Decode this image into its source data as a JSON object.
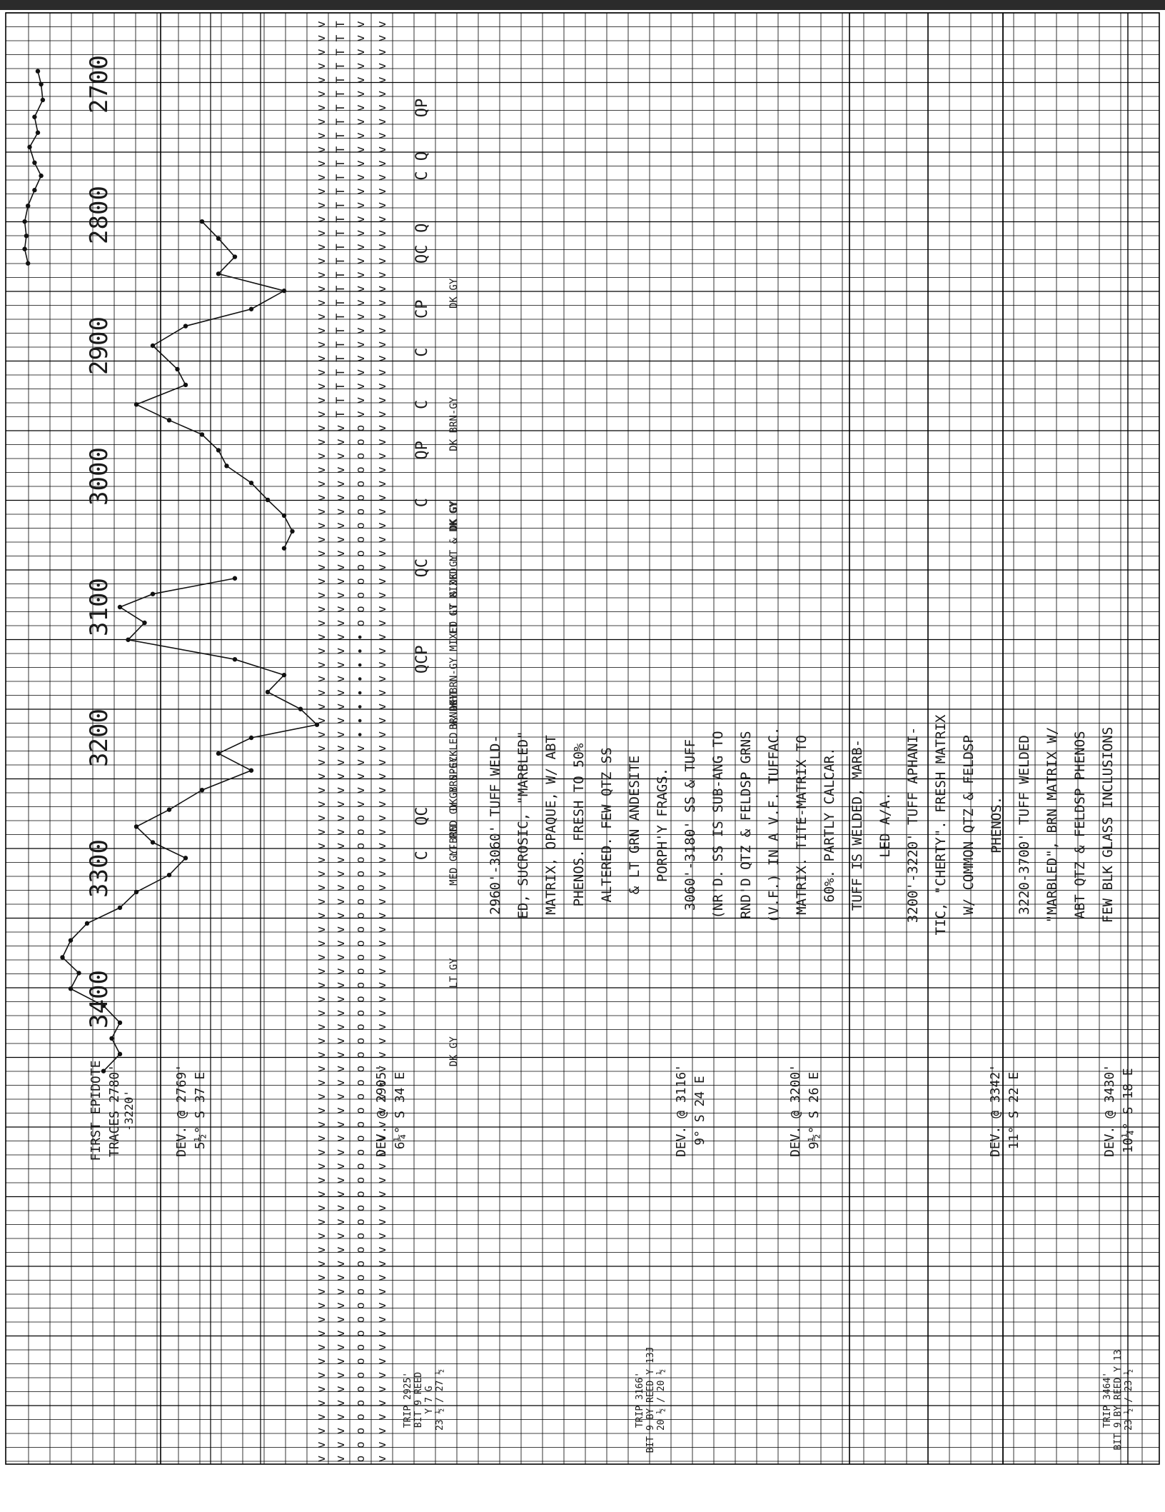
{
  "depth_labels": [
    "2700",
    "2800",
    "2900",
    "3000",
    "3100",
    "3200",
    "3300",
    "3400"
  ],
  "deviation_notes": [
    {
      "depth": "FIRST EPIDOTE",
      "angle": "TRACES 2780'",
      "extra": "-3220'"
    },
    {
      "depth": "DEV. @ 2769'",
      "angle": "5½° S 37 E"
    },
    {
      "depth": "DEV. @ 2905'",
      "angle": "6¼° S 34 E"
    },
    {
      "depth": "DEV. @ 3116'",
      "angle": "9° S 24 E"
    },
    {
      "depth": "DEV. @ 3200'",
      "angle": "9½° S 26 E"
    },
    {
      "depth": "DEV. @ 3342'",
      "angle": "11° S 22 E"
    },
    {
      "depth": "DEV. @ 3430'",
      "angle": "10¼° S 18 E"
    }
  ],
  "lithology_description": [
    "2960'-3060' TUFF WELD-",
    "ED, SUCROSIC, \"MARBLED\"",
    "MATRIX, OPAQUE, W/ ABT",
    "PHENOS. FRESH TO 50%",
    "ALTERED. FEW QTZ SS",
    "& LT GRN ANDESITE",
    "PORPH'Y FRAGS.",
    "3060'-3180' SS & TUFF",
    "(NR'D. SS IS SUB-ANG TO",
    "RND'D QTZ & FELDSP GRNS",
    "(V.F.) IN A V.F. TUFFAC.",
    "MATRIX. TITE-MATRIX TO",
    "60%. PARTLY CALCAR.",
    "TUFF IS WELDED, MARB-",
    "LED A/A.",
    "3200'-3220' TUFF APHANI-",
    "TIC, \"CHERTY\". FRESH MATRIX",
    "W/ COMMON QTZ & FELDSP",
    "PHENOS.",
    "3220-3700' TUFF WELDED",
    "\"MARBLED\", BRN MATRIX W/",
    "ABT QTZ & FELDSP PHENOS",
    "FEW BLK GLASS INCLUSIONS"
  ],
  "color_notes": [
    "DK GY",
    "DK BRN-GY",
    "DK GY",
    "LT GY MIXED LT & DK GY",
    "DK BRN-GY MIXED LT & DK GY",
    "BRN-GY",
    "GY SPECKLED W/ WHT",
    "DK BRN-GY",
    "LT MED GY",
    "MED GY-BRN",
    "LT GY",
    "DK GY"
  ],
  "mineral_codes": [
    "QP",
    "Q",
    "C",
    "Q",
    "QC",
    "CP",
    "C",
    "C",
    "QP",
    "C",
    "QC",
    "QCP",
    "QC",
    "C"
  ],
  "trip_notes": [
    {
      "line1": "TRIP 2925'",
      "line2": "BIT 9 REED",
      "line3": "Y 7 G",
      "line4": "23 ½ / 27 ½"
    },
    {
      "line1": "TRIP 3166'",
      "line2": "BIT 9 BY REED Y 13J",
      "line3": "20 ½ / 20 ½"
    },
    {
      "line1": "TRIP 3464'",
      "line2": "BIT 9 BY REED Y 13",
      "line3": "23 ½ / 23 ½"
    }
  ],
  "chart_data": {
    "type": "line",
    "x_axis": "depth (ft)",
    "xlim": [
      2680,
      3480
    ],
    "series": [
      {
        "name": "",
        "points": [
          [
            2690,
            1.1
          ],
          [
            2700,
            1.12
          ],
          [
            2712,
            1.13
          ],
          [
            2725,
            1.08
          ],
          [
            2737,
            1.1
          ],
          [
            2748,
            1.05
          ],
          [
            2760,
            1.08
          ],
          [
            2770,
            1.12
          ],
          [
            2781,
            1.08
          ],
          [
            2793,
            1.04
          ],
          [
            2805,
            1.02
          ],
          [
            2816,
            1.03
          ],
          [
            2826,
            1.02
          ],
          [
            2837,
            1.04
          ]
        ]
      },
      {
        "name": "",
        "points": [
          [
            2805,
            2.1
          ],
          [
            2818,
            2.2
          ],
          [
            2832,
            2.3
          ],
          [
            2845,
            2.2
          ],
          [
            2858,
            2.6
          ],
          [
            2872,
            2.4
          ],
          [
            2885,
            2.0
          ],
          [
            2900,
            1.8
          ],
          [
            2918,
            1.95
          ],
          [
            2930,
            2.0
          ],
          [
            2945,
            1.7
          ],
          [
            2957,
            1.9
          ],
          [
            2968,
            2.1
          ],
          [
            2980,
            2.2
          ],
          [
            2992,
            2.25
          ],
          [
            3005,
            2.4
          ],
          [
            3018,
            2.5
          ],
          [
            3030,
            2.6
          ],
          [
            3042,
            2.65
          ],
          [
            3055,
            2.6
          ]
        ]
      },
      {
        "name": "",
        "points": [
          [
            3078,
            2.3
          ],
          [
            3090,
            1.8
          ],
          [
            3100,
            1.6
          ],
          [
            3112,
            1.75
          ],
          [
            3125,
            1.65
          ],
          [
            3140,
            2.3
          ],
          [
            3152,
            2.6
          ],
          [
            3165,
            2.5
          ],
          [
            3178,
            2.7
          ],
          [
            3190,
            2.8
          ],
          [
            3200,
            2.4
          ],
          [
            3212,
            2.2
          ],
          [
            3225,
            2.4
          ],
          [
            3240,
            2.1
          ],
          [
            3255,
            1.9
          ],
          [
            3268,
            1.7
          ],
          [
            3280,
            1.8
          ],
          [
            3292,
            2.0
          ],
          [
            3305,
            1.9
          ],
          [
            3318,
            1.7
          ],
          [
            3330,
            1.6
          ],
          [
            3342,
            1.4
          ],
          [
            3355,
            1.3
          ],
          [
            3368,
            1.25
          ],
          [
            3380,
            1.35
          ],
          [
            3392,
            1.3
          ],
          [
            3405,
            1.5
          ],
          [
            3418,
            1.6
          ],
          [
            3430,
            1.55
          ],
          [
            3442,
            1.6
          ],
          [
            3455,
            1.5
          ]
        ]
      }
    ]
  }
}
